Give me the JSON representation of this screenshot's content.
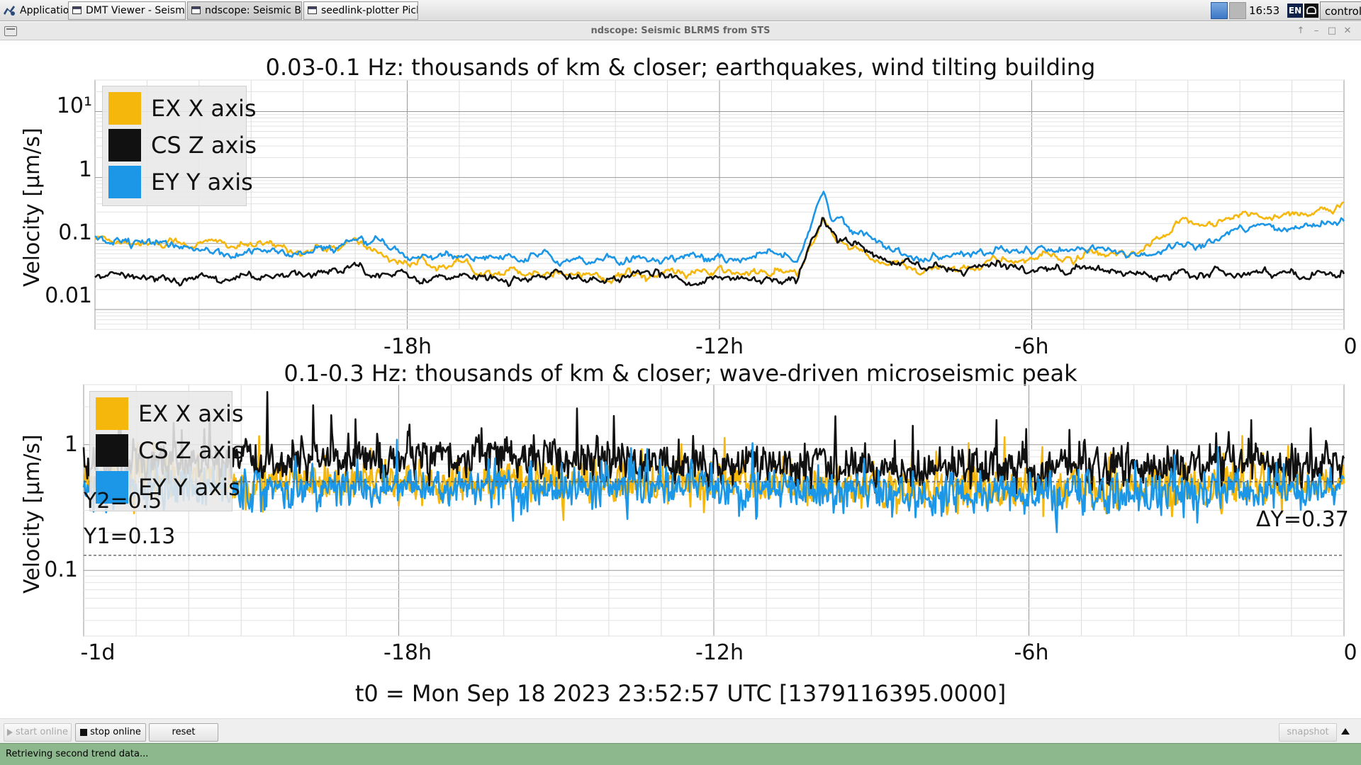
{
  "taskbar": {
    "apps_label": "Applications",
    "tasks": [
      {
        "label": "DMT Viewer - Seismic_F..."
      },
      {
        "label": "ndscope: Seismic BLRM..."
      },
      {
        "label": "seedlink-plotter Picket F..."
      }
    ],
    "clock": "16:53",
    "lang": "EN",
    "user": "controls"
  },
  "window": {
    "title": "ndscope: Seismic BLRMS from STS"
  },
  "colors": {
    "ex": "#f5b70c",
    "cs": "#111111",
    "ey": "#1c96e6"
  },
  "plot1": {
    "title": "0.03-0.1 Hz: thousands of km & closer; earthquakes, wind tilting building",
    "ylabel": "Velocity [µm/s]",
    "yticks": [
      "10¹",
      "1",
      "0.1",
      "0.01"
    ],
    "xticks": [
      "-18h",
      "-12h",
      "-6h",
      "0"
    ],
    "legend": [
      "EX X axis",
      "CS Z axis",
      "EY Y axis"
    ]
  },
  "plot2": {
    "title": "0.1-0.3 Hz: thousands of km & closer; wave-driven microseismic peak",
    "ylabel": "Velocity [µm/s]",
    "yticks": [
      "1",
      "0.1"
    ],
    "xticks": [
      "-1d",
      "-18h",
      "-12h",
      "-6h",
      "0"
    ],
    "legend": [
      "EX X axis",
      "CS Z axis",
      "EY Y axis"
    ],
    "cursor_y2": "Y2=0.5",
    "cursor_y1": "Y1=0.13",
    "cursor_dy": "ΔY=0.37"
  },
  "chart_data": [
    {
      "type": "line",
      "title": "0.03-0.1 Hz: thousands of km & closer; earthquakes, wind tilting building",
      "xlabel": "",
      "ylabel": "Velocity [µm/s]",
      "yscale": "log",
      "ylim": [
        0.005,
        30
      ],
      "xlim": [
        -24,
        0
      ],
      "x_unit": "hours",
      "grid": true,
      "legend_position": "top-left",
      "series": [
        {
          "name": "EX X axis",
          "x": [
            -24,
            -22,
            -20,
            -19,
            -18,
            -16,
            -14,
            -12,
            -10.5,
            -10,
            -9.8,
            -9,
            -8,
            -6,
            -4,
            -3,
            -2,
            0
          ],
          "values": [
            0.12,
            0.1,
            0.08,
            0.1,
            0.05,
            0.04,
            0.035,
            0.035,
            0.035,
            0.2,
            0.12,
            0.05,
            0.04,
            0.06,
            0.06,
            0.2,
            0.25,
            0.35
          ]
        },
        {
          "name": "CS Z axis",
          "x": [
            -24,
            -22,
            -20,
            -19,
            -18,
            -16,
            -14,
            -12,
            -10.5,
            -10,
            -9.8,
            -9,
            -8,
            -6,
            -4,
            -3,
            -2,
            0
          ],
          "values": [
            0.03,
            0.03,
            0.03,
            0.05,
            0.03,
            0.03,
            0.03,
            0.03,
            0.03,
            0.25,
            0.15,
            0.06,
            0.04,
            0.045,
            0.035,
            0.04,
            0.04,
            0.035
          ]
        },
        {
          "name": "EY Y axis",
          "x": [
            -24,
            -22,
            -20,
            -19,
            -18,
            -16,
            -14,
            -12,
            -10.5,
            -10,
            -9.8,
            -9,
            -8,
            -6,
            -4,
            -3,
            -2,
            0
          ],
          "values": [
            0.13,
            0.08,
            0.07,
            0.1,
            0.07,
            0.06,
            0.06,
            0.06,
            0.06,
            0.6,
            0.25,
            0.1,
            0.06,
            0.08,
            0.07,
            0.1,
            0.15,
            0.22
          ]
        }
      ]
    },
    {
      "type": "line",
      "title": "0.1-0.3 Hz: thousands of km & closer; wave-driven microseismic peak",
      "xlabel": "",
      "ylabel": "Velocity [µm/s]",
      "yscale": "log",
      "ylim": [
        0.03,
        3
      ],
      "xlim": [
        -24,
        0
      ],
      "x_unit": "hours",
      "grid": true,
      "legend_position": "top-left",
      "series": [
        {
          "name": "EX X axis",
          "x": [
            -24,
            -20,
            -16,
            -12,
            -8,
            -4,
            0
          ],
          "values": [
            0.5,
            0.5,
            0.5,
            0.5,
            0.45,
            0.45,
            0.5
          ]
        },
        {
          "name": "CS Z axis",
          "x": [
            -24,
            -20,
            -16,
            -12,
            -8,
            -4,
            0
          ],
          "values": [
            0.7,
            0.75,
            0.8,
            0.7,
            0.65,
            0.65,
            0.7
          ]
        },
        {
          "name": "EY Y axis",
          "x": [
            -24,
            -20,
            -16,
            -12,
            -8,
            -4,
            0
          ],
          "values": [
            0.45,
            0.45,
            0.45,
            0.45,
            0.4,
            0.4,
            0.45
          ]
        }
      ]
    }
  ],
  "t0": "t0 = Mon Sep 18 2023 23:52:57 UTC [1379116395.0000]",
  "buttons": {
    "start": "start online",
    "stop": "stop online",
    "reset": "reset",
    "snapshot": "snapshot"
  },
  "status": "Retrieving second trend data..."
}
